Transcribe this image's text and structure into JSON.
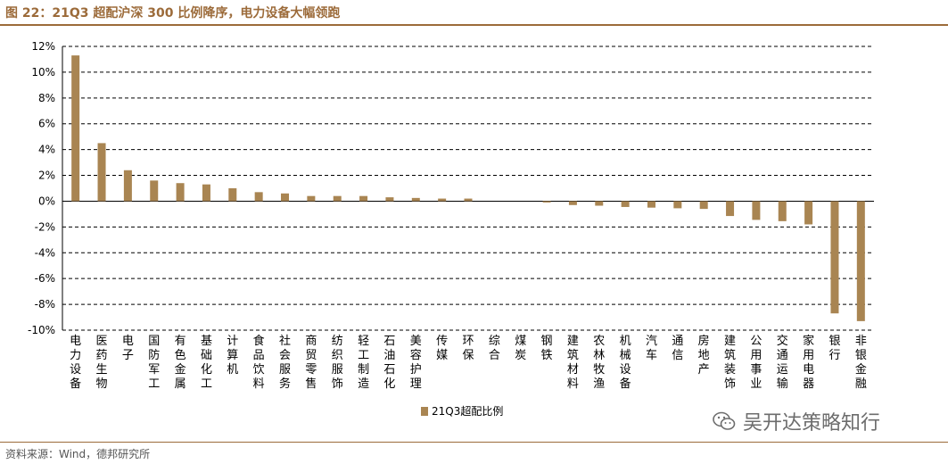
{
  "figure": {
    "title": "图 22：21Q3 超配沪深 300 比例降序，电力设备大幅领跑",
    "source": "资料来源：Wind，德邦研究所",
    "watermark": "吴开达策略知行",
    "watermark_icon": "wechat-icon"
  },
  "colors": {
    "bar": "#a98552",
    "accent": "#9c6b3a",
    "grid": "#000000",
    "text": "#000000"
  },
  "chart_data": {
    "type": "bar",
    "categories": [
      "电力设备",
      "医药生物",
      "电子",
      "国防军工",
      "有色金属",
      "基础化工",
      "计算机",
      "食品饮料",
      "社会服务",
      "商贸零售",
      "纺织服饰",
      "轻工制造",
      "石油石化",
      "美容护理",
      "传媒",
      "环保",
      "综合",
      "煤炭",
      "钢铁",
      "建筑材料",
      "农林牧渔",
      "机械设备",
      "汽车",
      "通信",
      "房地产",
      "建筑装饰",
      "公用事业",
      "交通运输",
      "家用电器",
      "银行",
      "非银金融"
    ],
    "series": [
      {
        "name": "21Q3超配比例",
        "values": [
          11.3,
          4.5,
          2.4,
          1.6,
          1.4,
          1.3,
          1.0,
          0.7,
          0.6,
          0.4,
          0.4,
          0.4,
          0.3,
          0.25,
          0.2,
          0.2,
          0.0,
          0.0,
          -0.1,
          -0.3,
          -0.35,
          -0.45,
          -0.5,
          -0.55,
          -0.6,
          -1.15,
          -1.45,
          -1.55,
          -1.8,
          -8.7,
          -9.3
        ]
      }
    ],
    "ylim": [
      -10,
      12
    ],
    "yticks": [
      "-10%",
      "-8%",
      "-6%",
      "-4%",
      "-2%",
      "0%",
      "2%",
      "4%",
      "6%",
      "8%",
      "10%",
      "12%"
    ],
    "ytick_values": [
      -10,
      -8,
      -6,
      -4,
      -2,
      0,
      2,
      4,
      6,
      8,
      10,
      12
    ],
    "grid": true,
    "grid_style": "dashed",
    "legend_position": "bottom-center",
    "xlabel": "",
    "ylabel": ""
  }
}
